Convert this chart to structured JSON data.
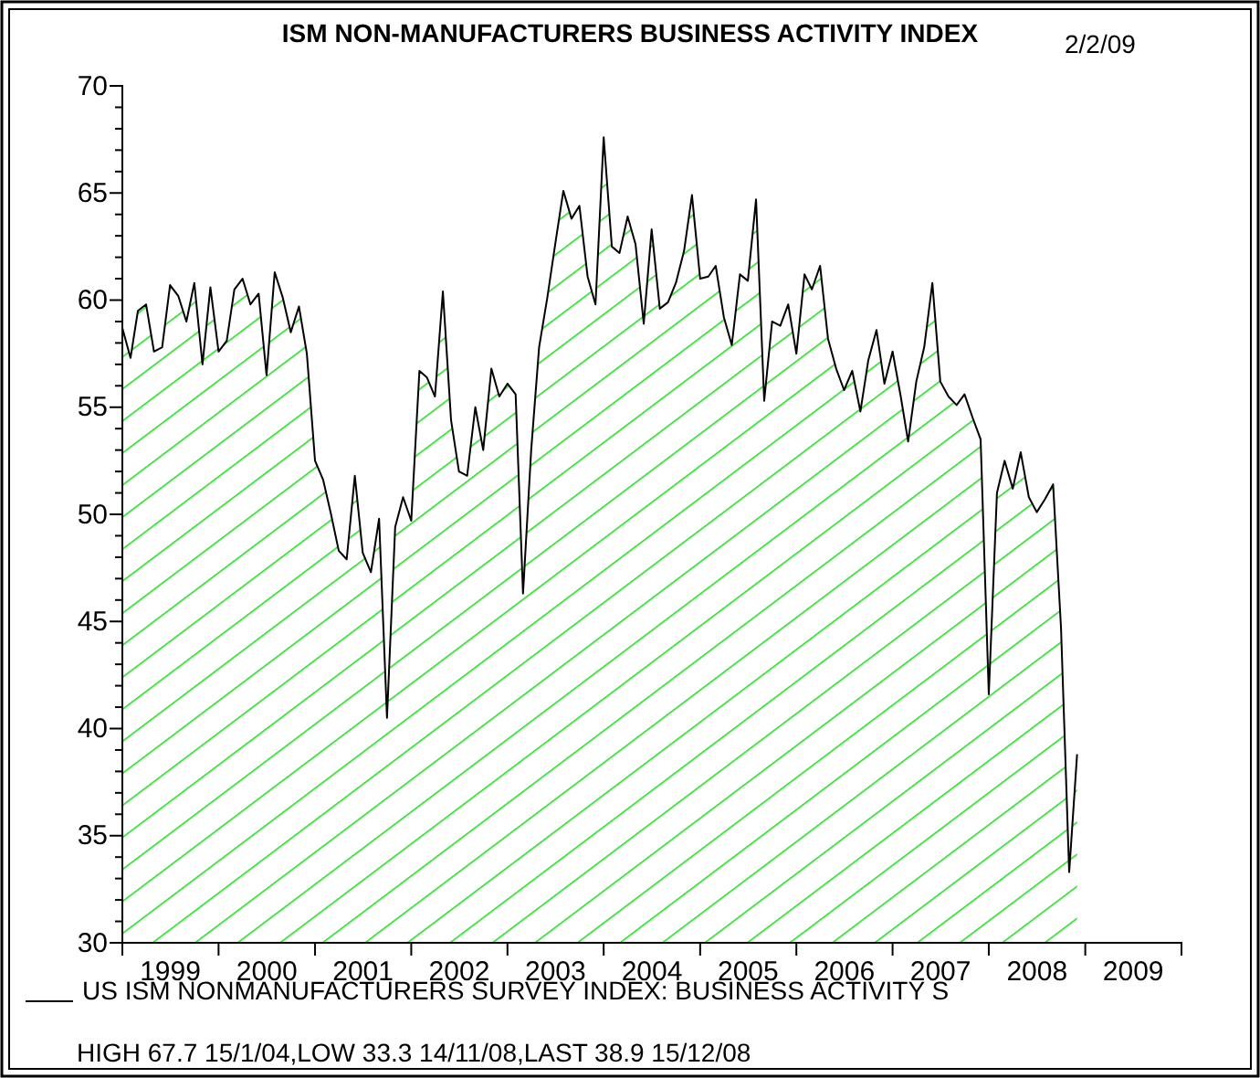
{
  "chart_data": {
    "type": "area",
    "title": "ISM NON-MANUFACTURERS BUSINESS ACTIVITY INDEX",
    "annotations": [
      "2/2/09",
      "HIGH 67.7 15/1/04,LOW 33.3 14/11/08,LAST 38.9 15/12/08"
    ],
    "xlim": [
      "1999-01-01",
      "2010-01-01"
    ],
    "xticks": [
      {
        "value": "1999-01-01",
        "label": null
      },
      {
        "value": "1999-07-02",
        "label": "1999"
      },
      {
        "value": "2000-01-01",
        "label": null
      },
      {
        "value": "2000-07-02",
        "label": "2000"
      },
      {
        "value": "2001-01-01",
        "label": null
      },
      {
        "value": "2001-07-02",
        "label": "2001"
      },
      {
        "value": "2002-01-01",
        "label": null
      },
      {
        "value": "2002-07-02",
        "label": "2002"
      },
      {
        "value": "2003-01-01",
        "label": null
      },
      {
        "value": "2003-07-02",
        "label": "2003"
      },
      {
        "value": "2004-01-01",
        "label": null
      },
      {
        "value": "2004-07-02",
        "label": "2004"
      },
      {
        "value": "2005-01-01",
        "label": null
      },
      {
        "value": "2005-07-02",
        "label": "2005"
      },
      {
        "value": "2006-01-01",
        "label": null
      },
      {
        "value": "2006-07-02",
        "label": "2006"
      },
      {
        "value": "2007-01-01",
        "label": null
      },
      {
        "value": "2007-07-02",
        "label": "2007"
      },
      {
        "value": "2008-01-01",
        "label": null
      },
      {
        "value": "2008-07-02",
        "label": "2008"
      },
      {
        "value": "2009-01-01",
        "label": null
      },
      {
        "value": "2009-07-02",
        "label": "2009"
      },
      {
        "value": "2010-01-01",
        "label": null
      }
    ],
    "ylim": [
      30,
      70
    ],
    "yticks": [
      30,
      {
        "value": 31,
        "label": null
      },
      {
        "value": 32,
        "label": null
      },
      {
        "value": 33,
        "label": null
      },
      {
        "value": 34,
        "label": null
      },
      35,
      {
        "value": 36,
        "label": null
      },
      {
        "value": 37,
        "label": null
      },
      {
        "value": 38,
        "label": null
      },
      {
        "value": 39,
        "label": null
      },
      40,
      {
        "value": 41,
        "label": null
      },
      {
        "value": 42,
        "label": null
      },
      {
        "value": 43,
        "label": null
      },
      {
        "value": 44,
        "label": null
      },
      45,
      {
        "value": 46,
        "label": null
      },
      {
        "value": 47,
        "label": null
      },
      {
        "value": 48,
        "label": null
      },
      {
        "value": 49,
        "label": null
      },
      50,
      {
        "value": 51,
        "label": null
      },
      {
        "value": 52,
        "label": null
      },
      {
        "value": 53,
        "label": null
      },
      {
        "value": 54,
        "label": null
      },
      55,
      {
        "value": 56,
        "label": null
      },
      {
        "value": 57,
        "label": null
      },
      {
        "value": 58,
        "label": null
      },
      {
        "value": 59,
        "label": null
      },
      60,
      {
        "value": 61,
        "label": null
      },
      {
        "value": 62,
        "label": null
      },
      {
        "value": 63,
        "label": null
      },
      {
        "value": 64,
        "label": null
      },
      65,
      {
        "value": 66,
        "label": null
      },
      {
        "value": 67,
        "label": null
      },
      {
        "value": 68,
        "label": null
      },
      {
        "value": 69,
        "label": null
      },
      70
    ],
    "legend": "bottom",
    "x": [
      "1999-01",
      "1999-02",
      "1999-03",
      "1999-04",
      "1999-05",
      "1999-06",
      "1999-07",
      "1999-08",
      "1999-09",
      "1999-10",
      "1999-11",
      "1999-12",
      "2000-01",
      "2000-02",
      "2000-03",
      "2000-04",
      "2000-05",
      "2000-06",
      "2000-07",
      "2000-08",
      "2000-09",
      "2000-10",
      "2000-11",
      "2000-12",
      "2001-01",
      "2001-02",
      "2001-03",
      "2001-04",
      "2001-05",
      "2001-06",
      "2001-07",
      "2001-08",
      "2001-09",
      "2001-10",
      "2001-11",
      "2001-12",
      "2002-01",
      "2002-02",
      "2002-03",
      "2002-04",
      "2002-05",
      "2002-06",
      "2002-07",
      "2002-08",
      "2002-09",
      "2002-10",
      "2002-11",
      "2002-12",
      "2003-01",
      "2003-02",
      "2003-03",
      "2003-04",
      "2003-05",
      "2003-06",
      "2003-07",
      "2003-08",
      "2003-09",
      "2003-10",
      "2003-11",
      "2003-12",
      "2004-01",
      "2004-02",
      "2004-03",
      "2004-04",
      "2004-05",
      "2004-06",
      "2004-07",
      "2004-08",
      "2004-09",
      "2004-10",
      "2004-11",
      "2004-12",
      "2005-01",
      "2005-02",
      "2005-03",
      "2005-04",
      "2005-05",
      "2005-06",
      "2005-07",
      "2005-08",
      "2005-09",
      "2005-10",
      "2005-11",
      "2005-12",
      "2006-01",
      "2006-02",
      "2006-03",
      "2006-04",
      "2006-05",
      "2006-06",
      "2006-07",
      "2006-08",
      "2006-09",
      "2006-10",
      "2006-11",
      "2006-12",
      "2007-01",
      "2007-02",
      "2007-03",
      "2007-04",
      "2007-05",
      "2007-06",
      "2007-07",
      "2007-08",
      "2007-09",
      "2007-10",
      "2007-11",
      "2007-12",
      "2008-01",
      "2008-02",
      "2008-03",
      "2008-04",
      "2008-05",
      "2008-06",
      "2008-07",
      "2008-08",
      "2008-09",
      "2008-10",
      "2008-11",
      "2008-12"
    ],
    "series": [
      {
        "name": "US ISM NONMANUFACTURERS SURVEY INDEX: BUSINESS ACTIVITY S",
        "color": "#22dd22",
        "values": [
          58.7,
          57.3,
          59.5,
          59.8,
          57.6,
          57.8,
          60.7,
          60.2,
          59.0,
          60.8,
          57.0,
          60.6,
          57.6,
          58.1,
          60.5,
          61.0,
          59.8,
          60.3,
          56.5,
          61.3,
          60.1,
          58.5,
          59.7,
          57.5,
          52.5,
          51.6,
          50.1,
          48.3,
          47.9,
          51.8,
          48.2,
          47.3,
          49.8,
          40.5,
          49.4,
          50.8,
          49.7,
          56.7,
          56.4,
          55.5,
          60.4,
          54.4,
          52.0,
          51.8,
          55.0,
          53.0,
          56.8,
          55.5,
          56.1,
          55.6,
          46.3,
          53.0,
          57.8,
          60.1,
          62.6,
          65.1,
          63.8,
          64.4,
          61.1,
          59.8,
          67.6,
          62.5,
          62.2,
          63.9,
          62.6,
          58.9,
          63.3,
          59.6,
          59.9,
          60.8,
          62.3,
          64.9,
          61.0,
          61.1,
          61.6,
          59.2,
          57.9,
          61.2,
          60.9,
          64.7,
          55.3,
          59.0,
          58.8,
          59.8,
          57.5,
          61.2,
          60.5,
          61.6,
          58.2,
          56.8,
          55.8,
          56.7,
          54.8,
          57.2,
          58.6,
          56.1,
          57.6,
          55.5,
          53.4,
          56.2,
          57.8,
          60.8,
          56.2,
          55.5,
          55.1,
          55.6,
          54.5,
          53.5,
          41.6,
          51.0,
          52.5,
          51.2,
          52.9,
          50.8,
          50.1,
          50.7,
          51.4,
          44.7,
          33.3,
          38.8
        ]
      }
    ]
  }
}
